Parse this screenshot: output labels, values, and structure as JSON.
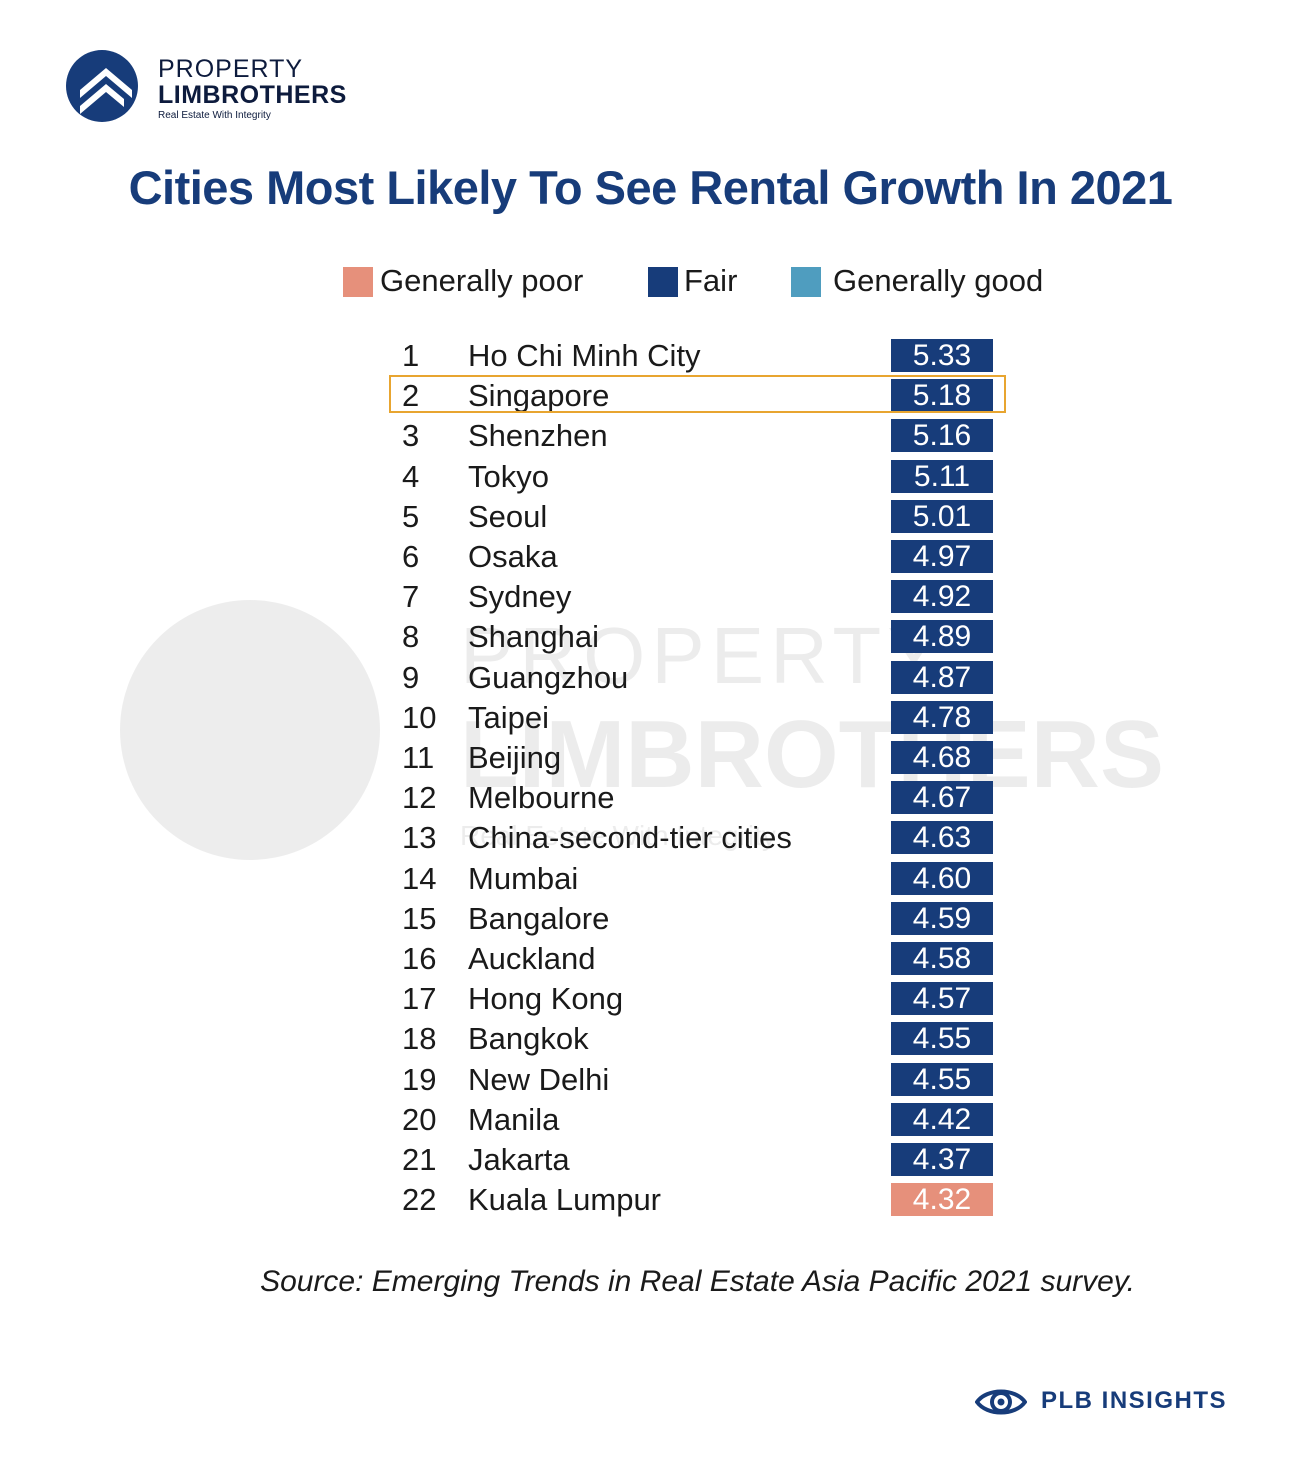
{
  "brand": {
    "line1": "PROPERTY",
    "line2": "LIMBROTHERS",
    "tagline": "Real Estate With Integrity"
  },
  "footer": {
    "label": "PLB INSIGHTS"
  },
  "colors": {
    "poor": "#e6907b",
    "fair": "#173c7a",
    "good": "#4f9dbf",
    "highlight": "#e8a530"
  },
  "chart_data": {
    "type": "table",
    "title": "Cities Most Likely To See Rental Growth In 2021",
    "legend": [
      {
        "label": "Generally poor",
        "key": "poor"
      },
      {
        "label": "Fair",
        "key": "fair"
      },
      {
        "label": "Generally good",
        "key": "good"
      }
    ],
    "highlighted_rank": 2,
    "rows": [
      {
        "rank": "1",
        "city": "Ho Chi Minh City",
        "value": "5.33",
        "rating": "fair"
      },
      {
        "rank": "2",
        "city": "Singapore",
        "value": "5.18",
        "rating": "fair"
      },
      {
        "rank": "3",
        "city": "Shenzhen",
        "value": "5.16",
        "rating": "fair"
      },
      {
        "rank": "4",
        "city": "Tokyo",
        "value": "5.11",
        "rating": "fair"
      },
      {
        "rank": "5",
        "city": "Seoul",
        "value": "5.01",
        "rating": "fair"
      },
      {
        "rank": "6",
        "city": "Osaka",
        "value": "4.97",
        "rating": "fair"
      },
      {
        "rank": "7",
        "city": "Sydney",
        "value": "4.92",
        "rating": "fair"
      },
      {
        "rank": "8",
        "city": "Shanghai",
        "value": "4.89",
        "rating": "fair"
      },
      {
        "rank": "9",
        "city": "Guangzhou",
        "value": "4.87",
        "rating": "fair"
      },
      {
        "rank": "10",
        "city": "Taipei",
        "value": "4.78",
        "rating": "fair"
      },
      {
        "rank": "11",
        "city": "Beijing",
        "value": "4.68",
        "rating": "fair"
      },
      {
        "rank": "12",
        "city": "Melbourne",
        "value": "4.67",
        "rating": "fair"
      },
      {
        "rank": "13",
        "city": "China-second-tier cities",
        "value": "4.63",
        "rating": "fair"
      },
      {
        "rank": "14",
        "city": "Mumbai",
        "value": "4.60",
        "rating": "fair"
      },
      {
        "rank": "15",
        "city": "Bangalore",
        "value": "4.59",
        "rating": "fair"
      },
      {
        "rank": "16",
        "city": "Auckland",
        "value": "4.58",
        "rating": "fair"
      },
      {
        "rank": "17",
        "city": "Hong Kong",
        "value": "4.57",
        "rating": "fair"
      },
      {
        "rank": "18",
        "city": "Bangkok",
        "value": "4.55",
        "rating": "fair"
      },
      {
        "rank": "19",
        "city": "New Delhi",
        "value": "4.55",
        "rating": "fair"
      },
      {
        "rank": "20",
        "city": "Manila",
        "value": "4.42",
        "rating": "fair"
      },
      {
        "rank": "21",
        "city": "Jakarta",
        "value": "4.37",
        "rating": "fair"
      },
      {
        "rank": "22",
        "city": "Kuala Lumpur",
        "value": "4.32",
        "rating": "poor"
      }
    ],
    "source": "Source: Emerging Trends in Real Estate Asia Pacific 2021 survey."
  }
}
